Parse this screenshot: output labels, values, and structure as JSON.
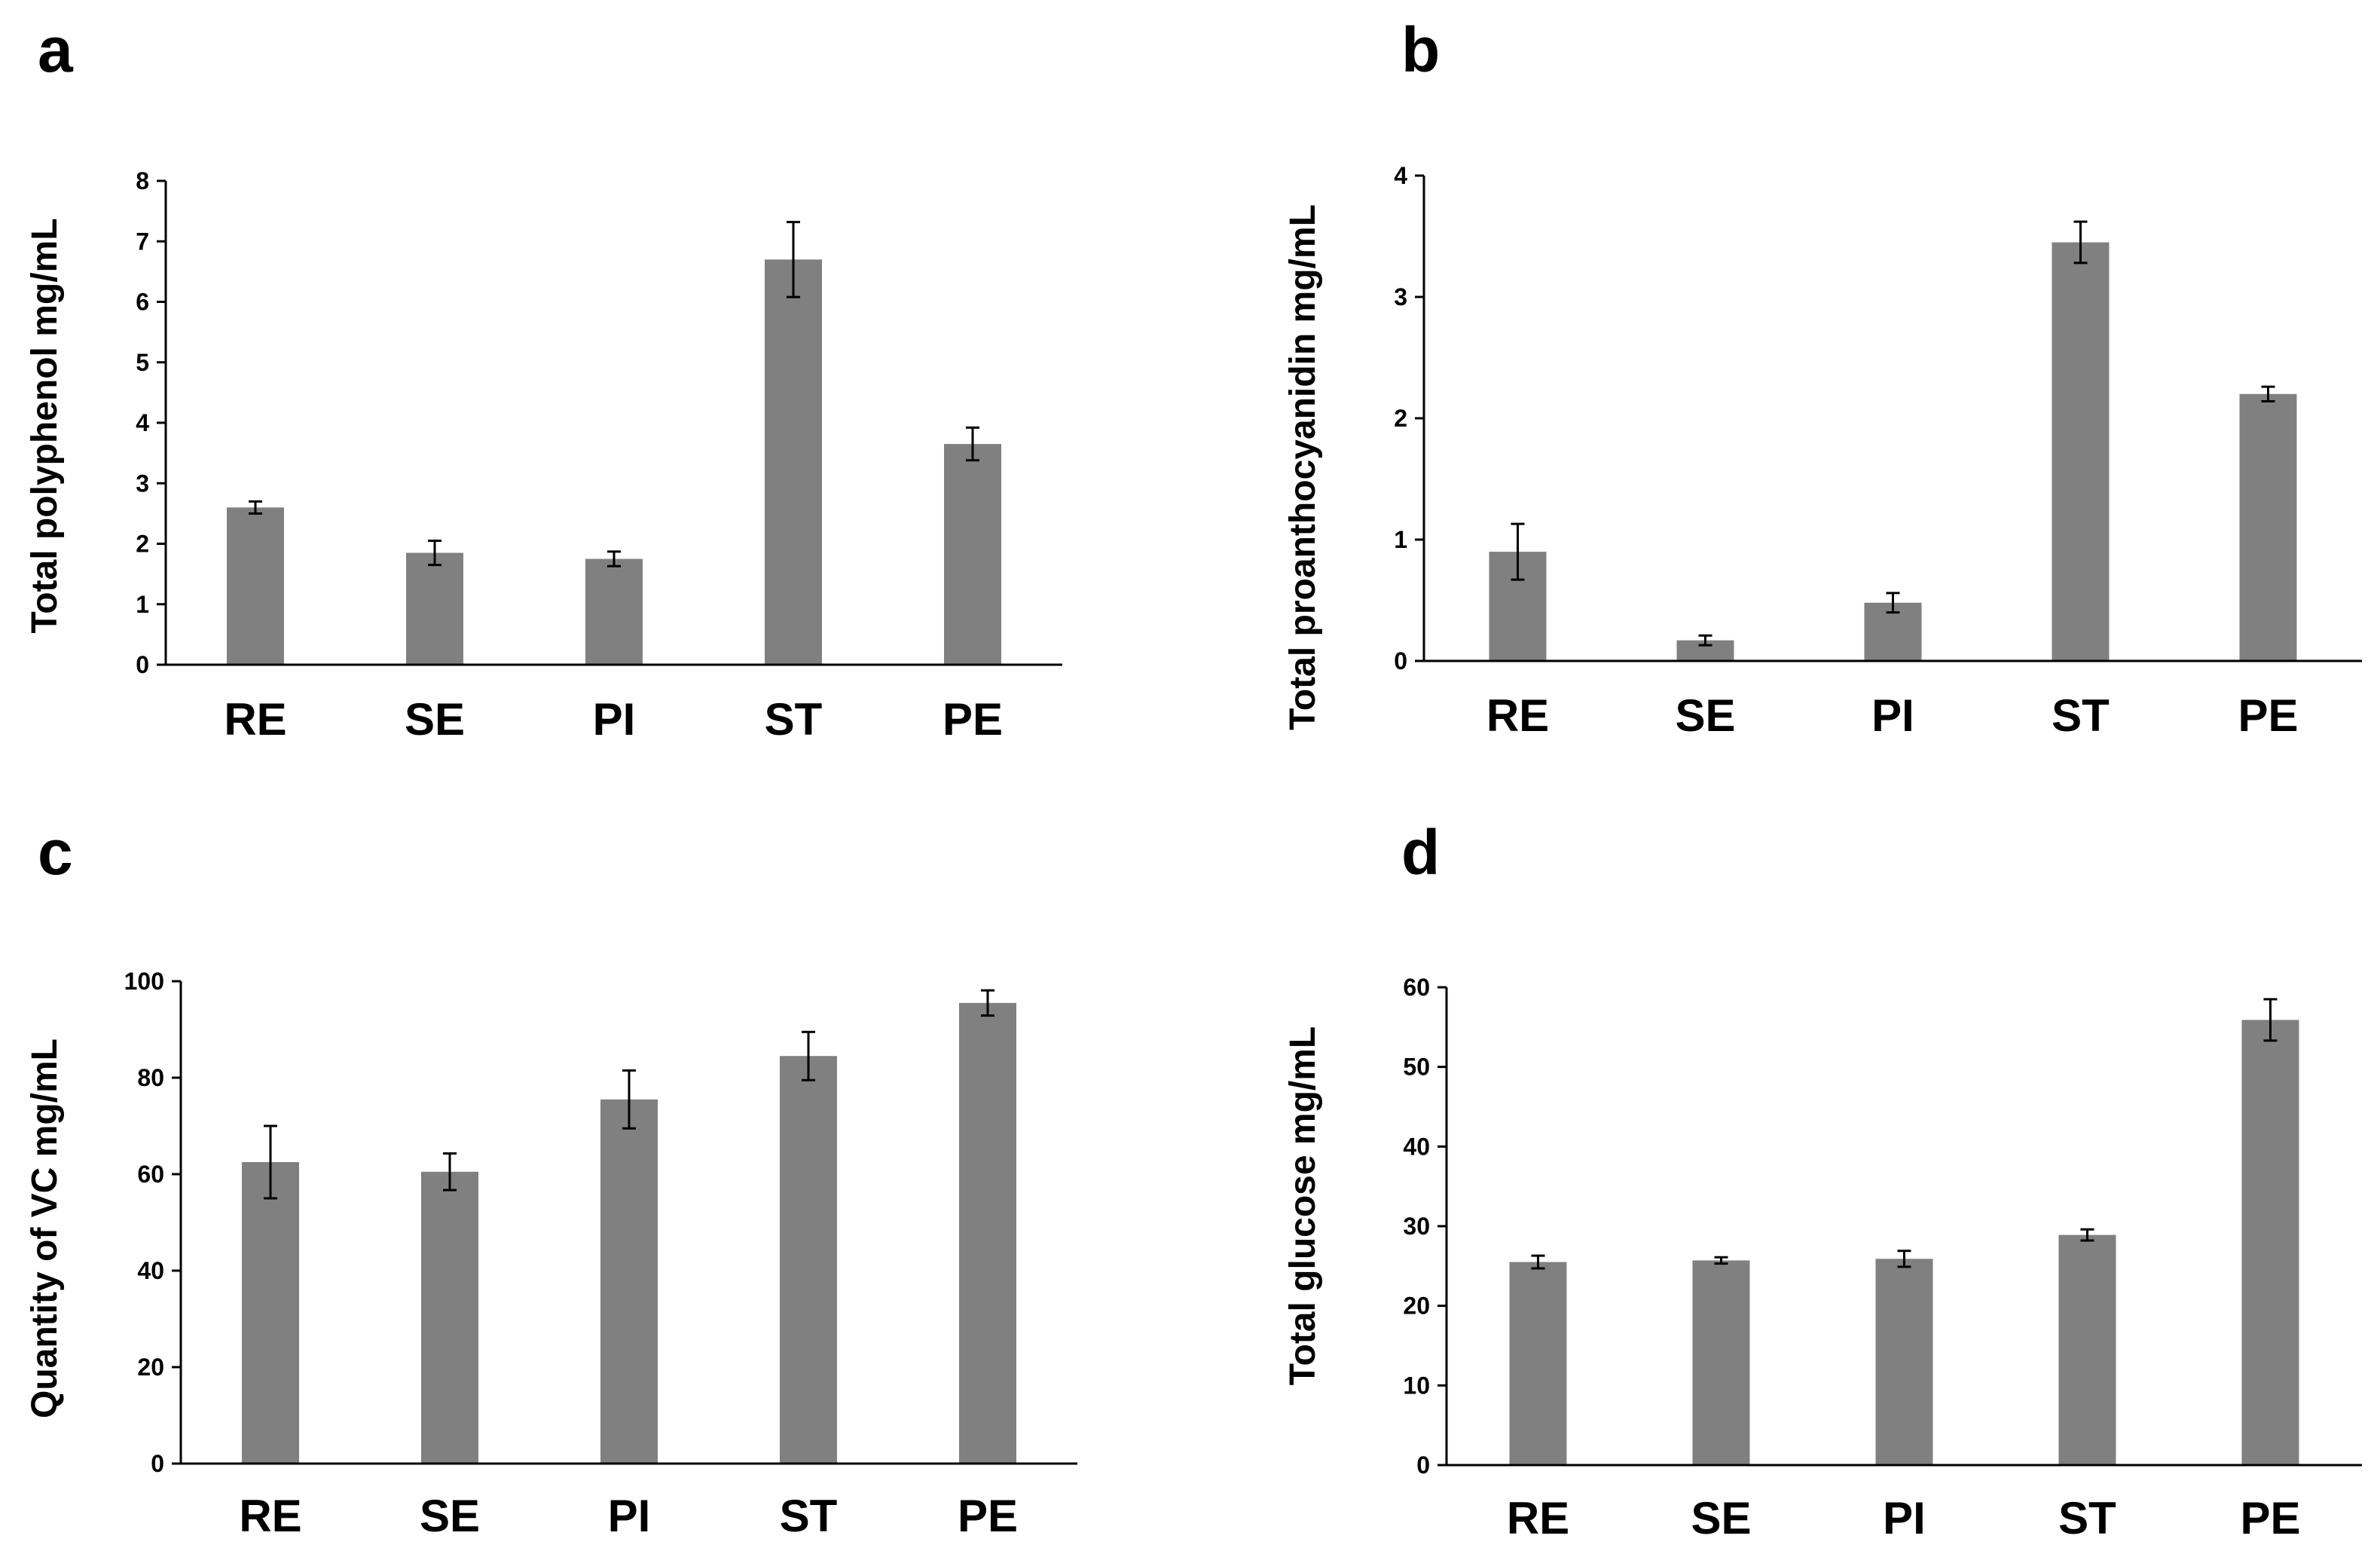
{
  "colors": {
    "bar": "#808080",
    "axis": "#000000",
    "background": "#ffffff"
  },
  "chart_data": [
    {
      "panel": "a",
      "type": "bar",
      "categories": [
        "RE",
        "SE",
        "PI",
        "ST",
        "PE"
      ],
      "values": [
        2.6,
        1.85,
        1.75,
        6.7,
        3.65
      ],
      "errors": [
        0.1,
        0.2,
        0.12,
        0.62,
        0.27
      ],
      "ylabel": "Total polyphenol mg/mL",
      "xlabel": "",
      "ylim": [
        0,
        8
      ],
      "yticks": [
        "0",
        "1",
        "2",
        "3",
        "4",
        "5",
        "6",
        "7",
        "8"
      ]
    },
    {
      "panel": "b",
      "type": "bar",
      "categories": [
        "RE",
        "SE",
        "PI",
        "ST",
        "PE"
      ],
      "values": [
        0.9,
        0.17,
        0.48,
        3.45,
        2.2
      ],
      "errors": [
        0.23,
        0.04,
        0.08,
        0.17,
        0.06
      ],
      "ylabel": "Total proanthocyanidin mg/mL",
      "xlabel": "",
      "ylim": [
        0,
        4
      ],
      "yticks": [
        "0",
        "1",
        "2",
        "3",
        "4"
      ]
    },
    {
      "panel": "c",
      "type": "bar",
      "categories": [
        "RE",
        "SE",
        "PI",
        "ST",
        "PE"
      ],
      "values": [
        62.5,
        60.5,
        75.5,
        84.5,
        95.5
      ],
      "errors": [
        7.5,
        3.8,
        6.0,
        5.0,
        2.6
      ],
      "ylabel": "Quantity of VC mg/mL",
      "xlabel": "",
      "ylim": [
        0,
        100
      ],
      "yticks": [
        "0",
        "20",
        "40",
        "60",
        "80",
        "100"
      ]
    },
    {
      "panel": "d",
      "type": "bar",
      "categories": [
        "RE",
        "SE",
        "PI",
        "ST",
        "PE"
      ],
      "values": [
        25.5,
        25.7,
        25.9,
        28.9,
        55.9
      ],
      "errors": [
        0.8,
        0.4,
        1.0,
        0.7,
        2.6
      ],
      "ylabel": "Total glucose mg/mL",
      "xlabel": "",
      "ylim": [
        0,
        60
      ],
      "yticks": [
        "0",
        "10",
        "20",
        "30",
        "40",
        "50",
        "60"
      ]
    }
  ]
}
